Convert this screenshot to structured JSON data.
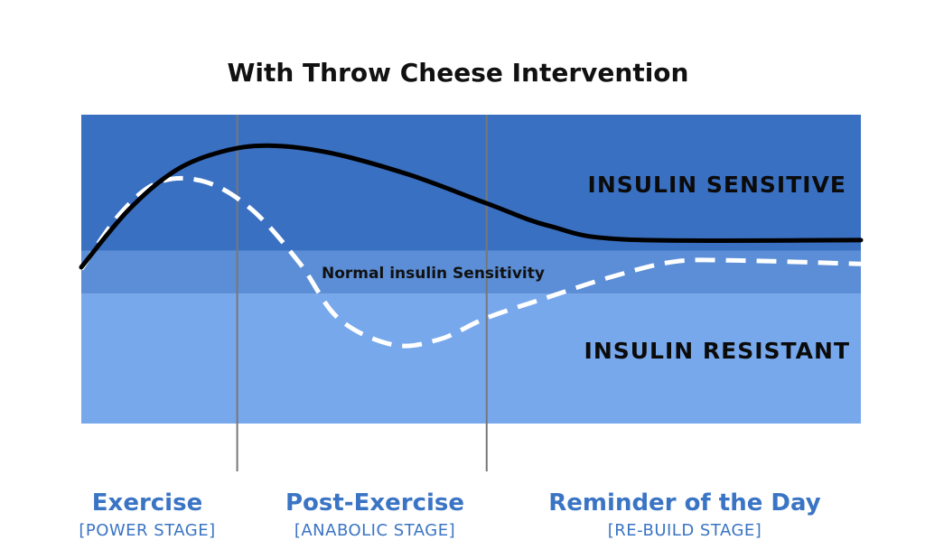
{
  "chart_data": {
    "type": "line",
    "title": "With Throw Cheese Intervention",
    "x_domain": [
      0,
      100
    ],
    "y_domain": [
      0,
      100
    ],
    "zones": [
      {
        "name": "INSULIN SENSITIVE",
        "range": [
          56,
          100
        ],
        "color": "#3a70c2"
      },
      {
        "name": "Normal insulin Sensitivity",
        "range": [
          42,
          56
        ],
        "color": "#5b8ed6"
      },
      {
        "name": "INSULIN RESISTANT",
        "range": [
          0,
          42
        ],
        "color": "#78a8ec"
      }
    ],
    "stage_boundaries": [
      20,
      52
    ],
    "series": [
      {
        "name": "with-intervention",
        "style": "solid",
        "color": "#000000",
        "points": [
          [
            0,
            50.6
          ],
          [
            6,
            69
          ],
          [
            12,
            81.8
          ],
          [
            18,
            88
          ],
          [
            24,
            90
          ],
          [
            32,
            87.6
          ],
          [
            42,
            80.6
          ],
          [
            52,
            71.3
          ],
          [
            60,
            64
          ],
          [
            70,
            59.6
          ],
          [
            100,
            59.4
          ]
        ]
      },
      {
        "name": "without-intervention",
        "style": "dashed",
        "color": "#ffffff",
        "points": [
          [
            0,
            50
          ],
          [
            5,
            68
          ],
          [
            10,
            78.2
          ],
          [
            16,
            78.2
          ],
          [
            22,
            69
          ],
          [
            28,
            52
          ],
          [
            33,
            34
          ],
          [
            40,
            25.5
          ],
          [
            46,
            27.3
          ],
          [
            52,
            34.2
          ],
          [
            60,
            41
          ],
          [
            68,
            47.5
          ],
          [
            76,
            52.4
          ],
          [
            84,
            52.8
          ],
          [
            100,
            51.7
          ]
        ]
      }
    ]
  },
  "stages": [
    {
      "name": "Exercise",
      "sub": "[POWER STAGE]"
    },
    {
      "name": "Post-Exercise",
      "sub": "[ANABOLIC STAGE]"
    },
    {
      "name": "Reminder of the Day",
      "sub": "[RE-BUILD STAGE]"
    }
  ]
}
